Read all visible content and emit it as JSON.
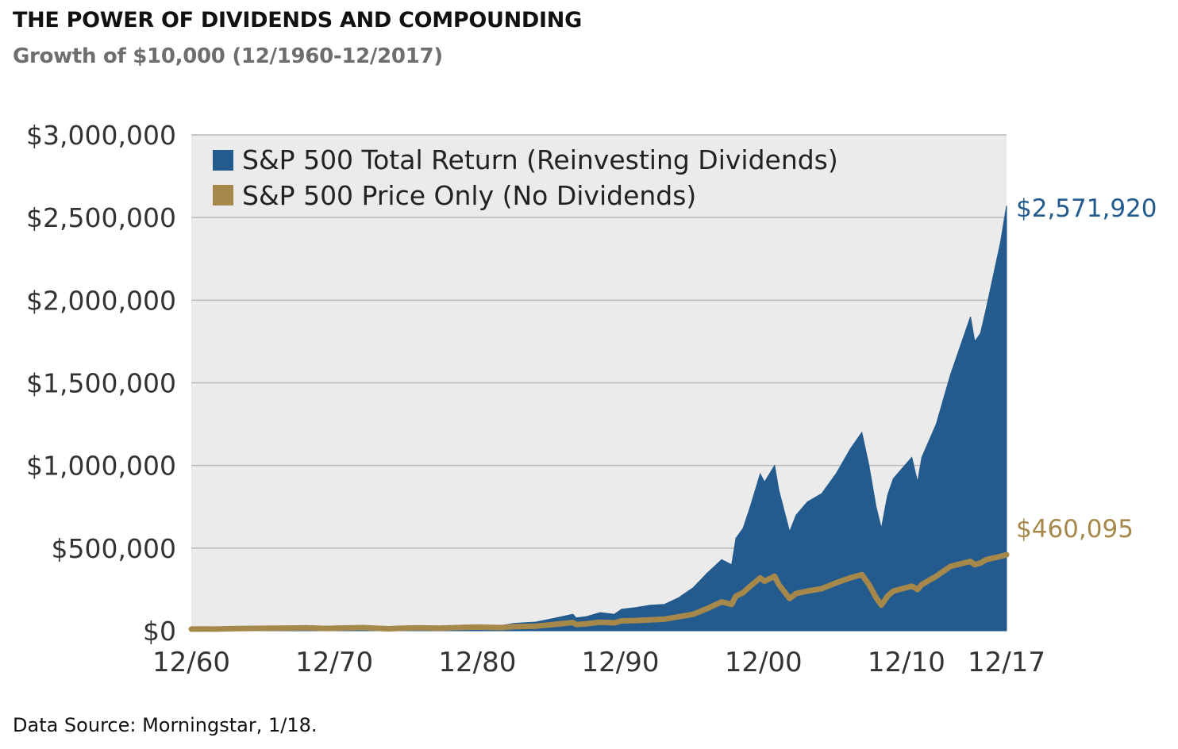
{
  "header": {
    "title": "THE POWER OF DIVIDENDS AND COMPOUNDING",
    "subtitle": "Growth of $10,000 (12/1960-12/2017)"
  },
  "footer": {
    "source": "Data Source: Morningstar, 1/18."
  },
  "colors": {
    "total_return": "#235b8e",
    "price_only": "#a6884a",
    "plot_background": "#ebebeb",
    "gridline": "#b9b9b9",
    "axis_text": "#333333"
  },
  "chart_data": {
    "type": "area",
    "title": "THE POWER OF DIVIDENDS AND COMPOUNDING",
    "subtitle": "Growth of $10,000 (12/1960-12/2017)",
    "xlabel": "",
    "ylabel": "",
    "xlim": [
      1960.92,
      2017.92
    ],
    "ylim": [
      0,
      3000000
    ],
    "grid": true,
    "legend_position": "top-left",
    "x_ticks": [
      {
        "x": 1960.92,
        "label": "12/60"
      },
      {
        "x": 1970.92,
        "label": "12/70"
      },
      {
        "x": 1980.92,
        "label": "12/80"
      },
      {
        "x": 1990.92,
        "label": "12/90"
      },
      {
        "x": 2000.92,
        "label": "12/00"
      },
      {
        "x": 2010.92,
        "label": "12/10"
      },
      {
        "x": 2017.92,
        "label": "12/17"
      }
    ],
    "y_ticks": [
      {
        "y": 0,
        "label": "$0"
      },
      {
        "y": 500000,
        "label": "$500,000"
      },
      {
        "y": 1000000,
        "label": "$1,000,000"
      },
      {
        "y": 1500000,
        "label": "$1,500,000"
      },
      {
        "y": 2000000,
        "label": "$2,000,000"
      },
      {
        "y": 2500000,
        "label": "$2,500,000"
      },
      {
        "y": 3000000,
        "label": "$3,000,000"
      }
    ],
    "series": [
      {
        "name": "S&P 500 Total Return (Reinvesting Dividends)",
        "color": "#235b8e",
        "style": "area",
        "end_label": "$2,571,920",
        "x": [
          1960.92,
          1962,
          1962.5,
          1964,
          1966,
          1967,
          1968.9,
          1970.4,
          1971,
          1972.9,
          1974.7,
          1975.5,
          1976.9,
          1978.2,
          1980,
          1980.9,
          1982.6,
          1983.5,
          1985,
          1986,
          1987.6,
          1987.83,
          1988.5,
          1989.5,
          1990.5,
          1991,
          1992,
          1993,
          1994,
          1995,
          1996,
          1997,
          1998,
          1998.7,
          1999,
          1999.5,
          2000,
          2000.7,
          2001,
          2001.7,
          2002,
          2002.75,
          2003.2,
          2004,
          2005,
          2006,
          2007,
          2007.8,
          2008.3,
          2008.8,
          2009.17,
          2009.6,
          2010,
          2011.3,
          2011.7,
          2012,
          2013,
          2014,
          2015.4,
          2015.7,
          2016.1,
          2016.5,
          2017,
          2017.5,
          2017.92
        ],
        "y": [
          10000,
          11000,
          9000,
          13000,
          16000,
          17000,
          21000,
          16000,
          20000,
          25000,
          14000,
          19000,
          24000,
          22000,
          30000,
          34000,
          32000,
          45000,
          53000,
          70000,
          100000,
          78000,
          85000,
          110000,
          100000,
          130000,
          140000,
          155000,
          160000,
          200000,
          260000,
          350000,
          430000,
          400000,
          560000,
          620000,
          750000,
          950000,
          900000,
          1000000,
          850000,
          600000,
          700000,
          780000,
          830000,
          950000,
          1100000,
          1200000,
          1000000,
          750000,
          620000,
          820000,
          920000,
          1050000,
          900000,
          1050000,
          1250000,
          1550000,
          1900000,
          1750000,
          1800000,
          1950000,
          2150000,
          2350000,
          2571920
        ]
      },
      {
        "name": "S&P 500 Price Only (No Dividends)",
        "color": "#a6884a",
        "style": "line",
        "end_label": "$460,095",
        "x": [
          1960.92,
          1962,
          1962.5,
          1964,
          1966,
          1967,
          1968.9,
          1970.4,
          1971,
          1972.9,
          1974.7,
          1975.5,
          1976.9,
          1978.2,
          1980,
          1980.9,
          1982.6,
          1983.5,
          1985,
          1986,
          1987.6,
          1987.83,
          1988.5,
          1989.5,
          1990.5,
          1991,
          1992,
          1993,
          1994,
          1995,
          1996,
          1997,
          1998,
          1998.7,
          1999,
          1999.5,
          2000,
          2000.7,
          2001,
          2001.7,
          2002,
          2002.75,
          2003.2,
          2004,
          2005,
          2006,
          2007,
          2007.8,
          2008.3,
          2008.8,
          2009.17,
          2009.6,
          2010,
          2011.3,
          2011.7,
          2012,
          2013,
          2014,
          2015.4,
          2015.7,
          2016.1,
          2016.5,
          2017,
          2017.5,
          2017.92
        ],
        "y": [
          10000,
          11000,
          10000,
          13000,
          15000,
          16000,
          18000,
          14000,
          16000,
          19000,
          12000,
          15000,
          18000,
          16000,
          20000,
          22000,
          19000,
          25000,
          28000,
          36000,
          50000,
          38000,
          42000,
          52000,
          48000,
          60000,
          62000,
          66000,
          70000,
          85000,
          100000,
          135000,
          175000,
          160000,
          210000,
          230000,
          270000,
          320000,
          300000,
          330000,
          280000,
          195000,
          225000,
          240000,
          255000,
          290000,
          320000,
          340000,
          280000,
          200000,
          155000,
          210000,
          240000,
          270000,
          250000,
          280000,
          330000,
          390000,
          420000,
          400000,
          410000,
          430000,
          440000,
          450000,
          460095
        ]
      }
    ]
  }
}
